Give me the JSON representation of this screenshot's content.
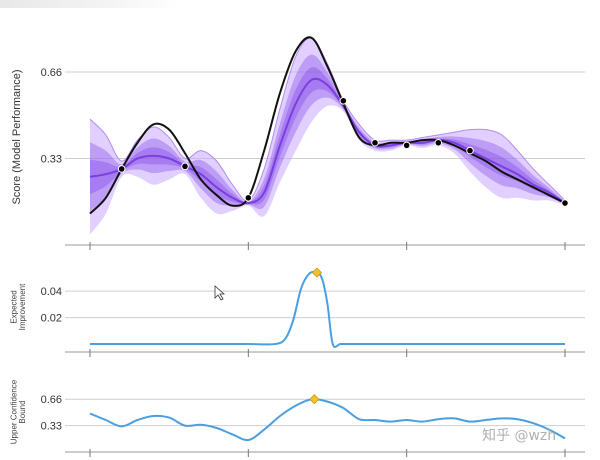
{
  "watermark": "知乎 @wzh",
  "colors": {
    "purple": "#7b3fe4",
    "purple_light": "#c9a8ff",
    "truth": "#111111",
    "blue": "#4a9fe0",
    "marker": "#f2c12e",
    "grid": "#cfcfcf"
  },
  "chart_data": [
    {
      "type": "line",
      "ylabel": "Score (Model Performance)",
      "yticks": [
        "0.66",
        "0.33"
      ],
      "ytick_values": [
        0.66,
        0.33
      ],
      "ylim": [
        0.0,
        0.82
      ],
      "xlim": [
        0,
        10
      ],
      "xticks": [
        0,
        3,
        6,
        9
      ],
      "truth": {
        "x": [
          0,
          0.3,
          0.6,
          0.9,
          1.2,
          1.5,
          1.8,
          2.1,
          2.4,
          2.7,
          3.0,
          3.3,
          3.6,
          3.9,
          4.2,
          4.5,
          4.8,
          5.1,
          5.4,
          5.7,
          6.0,
          6.3,
          6.6,
          6.9,
          7.2,
          7.5,
          7.8,
          8.1,
          8.4,
          8.7,
          9.0
        ],
        "y": [
          0.12,
          0.18,
          0.29,
          0.39,
          0.46,
          0.44,
          0.35,
          0.25,
          0.19,
          0.15,
          0.18,
          0.36,
          0.58,
          0.74,
          0.79,
          0.68,
          0.54,
          0.41,
          0.38,
          0.39,
          0.39,
          0.4,
          0.4,
          0.38,
          0.35,
          0.32,
          0.28,
          0.25,
          0.22,
          0.19,
          0.16
        ]
      },
      "mean": {
        "x": [
          0,
          0.3,
          0.6,
          0.9,
          1.2,
          1.5,
          1.8,
          2.1,
          2.4,
          2.7,
          3.0,
          3.3,
          3.6,
          3.9,
          4.2,
          4.5,
          4.8,
          5.1,
          5.4,
          5.7,
          6.0,
          6.3,
          6.6,
          6.9,
          7.2,
          7.5,
          7.8,
          8.1,
          8.4,
          8.7,
          9.0
        ],
        "y": [
          0.26,
          0.27,
          0.29,
          0.33,
          0.34,
          0.33,
          0.3,
          0.27,
          0.22,
          0.18,
          0.16,
          0.2,
          0.38,
          0.54,
          0.63,
          0.61,
          0.53,
          0.43,
          0.38,
          0.38,
          0.39,
          0.39,
          0.4,
          0.39,
          0.36,
          0.33,
          0.3,
          0.27,
          0.23,
          0.2,
          0.16
        ]
      },
      "uncertainty": [
        0.22,
        0.15,
        0.03,
        0.07,
        0.11,
        0.08,
        0.03,
        0.09,
        0.1,
        0.05,
        0.01,
        0.09,
        0.14,
        0.18,
        0.16,
        0.08,
        0.02,
        0.03,
        0.02,
        0.02,
        0.01,
        0.02,
        0.02,
        0.04,
        0.08,
        0.11,
        0.12,
        0.09,
        0.06,
        0.03,
        0.01
      ],
      "observations": {
        "x": [
          0.6,
          1.8,
          3.0,
          4.8,
          5.4,
          6.0,
          6.6,
          7.2,
          9.0
        ],
        "y": [
          0.29,
          0.3,
          0.18,
          0.55,
          0.39,
          0.38,
          0.39,
          0.36,
          0.16
        ]
      }
    },
    {
      "type": "line",
      "ylabel": "Expected Improvement",
      "yticks": [
        "0.04",
        "0.02"
      ],
      "ytick_values": [
        0.04,
        0.02
      ],
      "ylim": [
        -0.006,
        0.062
      ],
      "xlim": [
        0,
        10
      ],
      "xticks": [
        0,
        3,
        6,
        9
      ],
      "x": [
        0,
        0.5,
        1,
        1.5,
        2,
        2.5,
        3,
        3.5,
        3.7,
        3.85,
        4.0,
        4.15,
        4.3,
        4.4,
        4.5,
        4.6,
        4.75,
        5,
        5.5,
        6,
        6.5,
        7,
        7.5,
        8,
        8.5,
        9
      ],
      "y": [
        0,
        0,
        0,
        0,
        0,
        0,
        0,
        0,
        0.004,
        0.018,
        0.042,
        0.053,
        0.054,
        0.049,
        0.03,
        0,
        0,
        0,
        0,
        0,
        0,
        0,
        0,
        0,
        0,
        0
      ],
      "max_point": {
        "x": 4.3,
        "y": 0.054
      }
    },
    {
      "type": "line",
      "ylabel": "Upper Confidence Bound",
      "yticks": [
        "0.66",
        "0.33"
      ],
      "ytick_values": [
        0.66,
        0.33
      ],
      "ylim": [
        0.0,
        1.0
      ],
      "xlim": [
        0,
        10
      ],
      "xticks": [
        0,
        3,
        6,
        9
      ],
      "x": [
        0,
        0.3,
        0.6,
        0.9,
        1.2,
        1.5,
        1.8,
        2.1,
        2.4,
        2.7,
        3.0,
        3.3,
        3.6,
        3.9,
        4.2,
        4.5,
        4.8,
        5.1,
        5.4,
        5.7,
        6.0,
        6.3,
        6.6,
        6.9,
        7.2,
        7.5,
        7.8,
        8.1,
        8.4,
        8.7,
        9.0
      ],
      "y": [
        0.48,
        0.4,
        0.32,
        0.4,
        0.45,
        0.43,
        0.33,
        0.34,
        0.3,
        0.22,
        0.15,
        0.28,
        0.45,
        0.58,
        0.66,
        0.63,
        0.55,
        0.41,
        0.4,
        0.38,
        0.4,
        0.38,
        0.41,
        0.42,
        0.38,
        0.4,
        0.42,
        0.41,
        0.36,
        0.28,
        0.17
      ],
      "max_point": {
        "x": 4.25,
        "y": 0.66
      }
    }
  ]
}
